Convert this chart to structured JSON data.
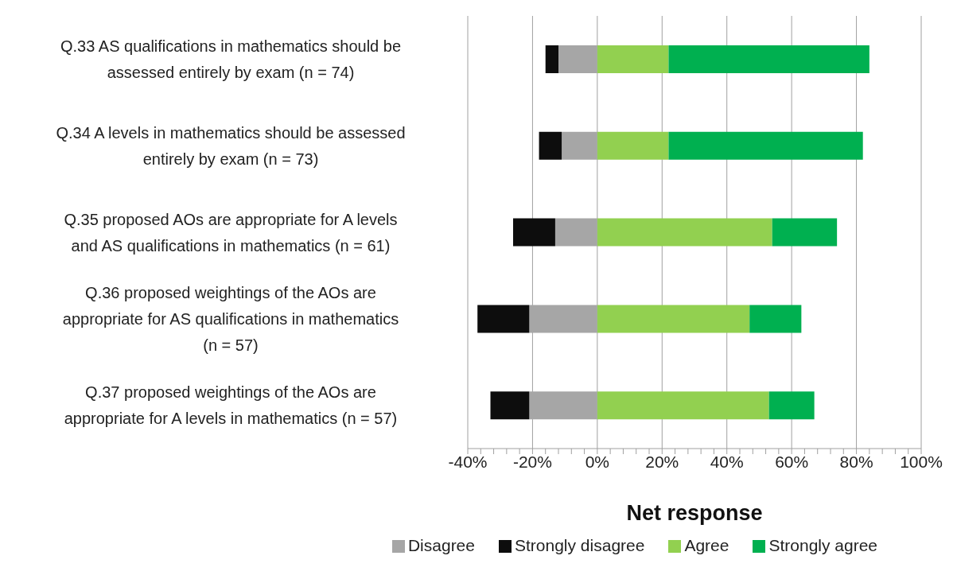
{
  "chart_data": {
    "type": "bar",
    "orientation": "horizontal",
    "stacked": true,
    "xlabel": "Net response",
    "categories": [
      "Q.33 AS qualifications in mathematics should be assessed entirely by exam (n = 74)",
      "Q.34 A levels in mathematics should be assessed entirely by exam (n = 73)",
      "Q.35 proposed AOs are appropriate for A levels and AS qualifications in mathematics (n = 61)",
      "Q.36 proposed weightings of the AOs are appropriate for AS qualifications in mathematics (n = 57)",
      "Q.37 proposed weightings of the AOs are appropriate for A levels in mathematics (n = 57)"
    ],
    "series": [
      {
        "name": "Disagree",
        "color": "#a6a6a6",
        "values": [
          -12,
          -11,
          -13,
          -21,
          -21
        ]
      },
      {
        "name": "Strongly disagree",
        "color": "#0d0d0d",
        "values": [
          -4,
          -7,
          -13,
          -16,
          -12
        ]
      },
      {
        "name": "Agree",
        "color": "#92d050",
        "values": [
          22,
          22,
          54,
          47,
          53
        ]
      },
      {
        "name": "Strongly agree",
        "color": "#00b050",
        "values": [
          62,
          60,
          20,
          16,
          14
        ]
      }
    ],
    "xlim": [
      -40,
      100
    ],
    "xticks": [
      {
        "value": -40,
        "label": "-40%"
      },
      {
        "value": -36,
        "label": null
      },
      {
        "value": -32,
        "label": null
      },
      {
        "value": -28,
        "label": null
      },
      {
        "value": -24,
        "label": null
      },
      {
        "value": -20,
        "label": "-20%"
      },
      {
        "value": -16,
        "label": null
      },
      {
        "value": -12,
        "label": null
      },
      {
        "value": -8,
        "label": null
      },
      {
        "value": -4,
        "label": null
      },
      {
        "value": 0,
        "label": "0%"
      },
      {
        "value": 4,
        "label": null
      },
      {
        "value": 8,
        "label": null
      },
      {
        "value": 12,
        "label": null
      },
      {
        "value": 16,
        "label": null
      },
      {
        "value": 20,
        "label": "20%"
      },
      {
        "value": 24,
        "label": null
      },
      {
        "value": 28,
        "label": null
      },
      {
        "value": 32,
        "label": null
      },
      {
        "value": 36,
        "label": null
      },
      {
        "value": 40,
        "label": "40%"
      },
      {
        "value": 44,
        "label": null
      },
      {
        "value": 48,
        "label": null
      },
      {
        "value": 52,
        "label": null
      },
      {
        "value": 56,
        "label": null
      },
      {
        "value": 60,
        "label": "60%"
      },
      {
        "value": 64,
        "label": null
      },
      {
        "value": 68,
        "label": null
      },
      {
        "value": 72,
        "label": null
      },
      {
        "value": 76,
        "label": null
      },
      {
        "value": 80,
        "label": "80%"
      },
      {
        "value": 84,
        "label": null
      },
      {
        "value": 88,
        "label": null
      },
      {
        "value": 92,
        "label": null
      },
      {
        "value": 96,
        "label": null
      },
      {
        "value": 100,
        "label": "100%"
      }
    ],
    "grid": "x",
    "legend": "bottom"
  }
}
